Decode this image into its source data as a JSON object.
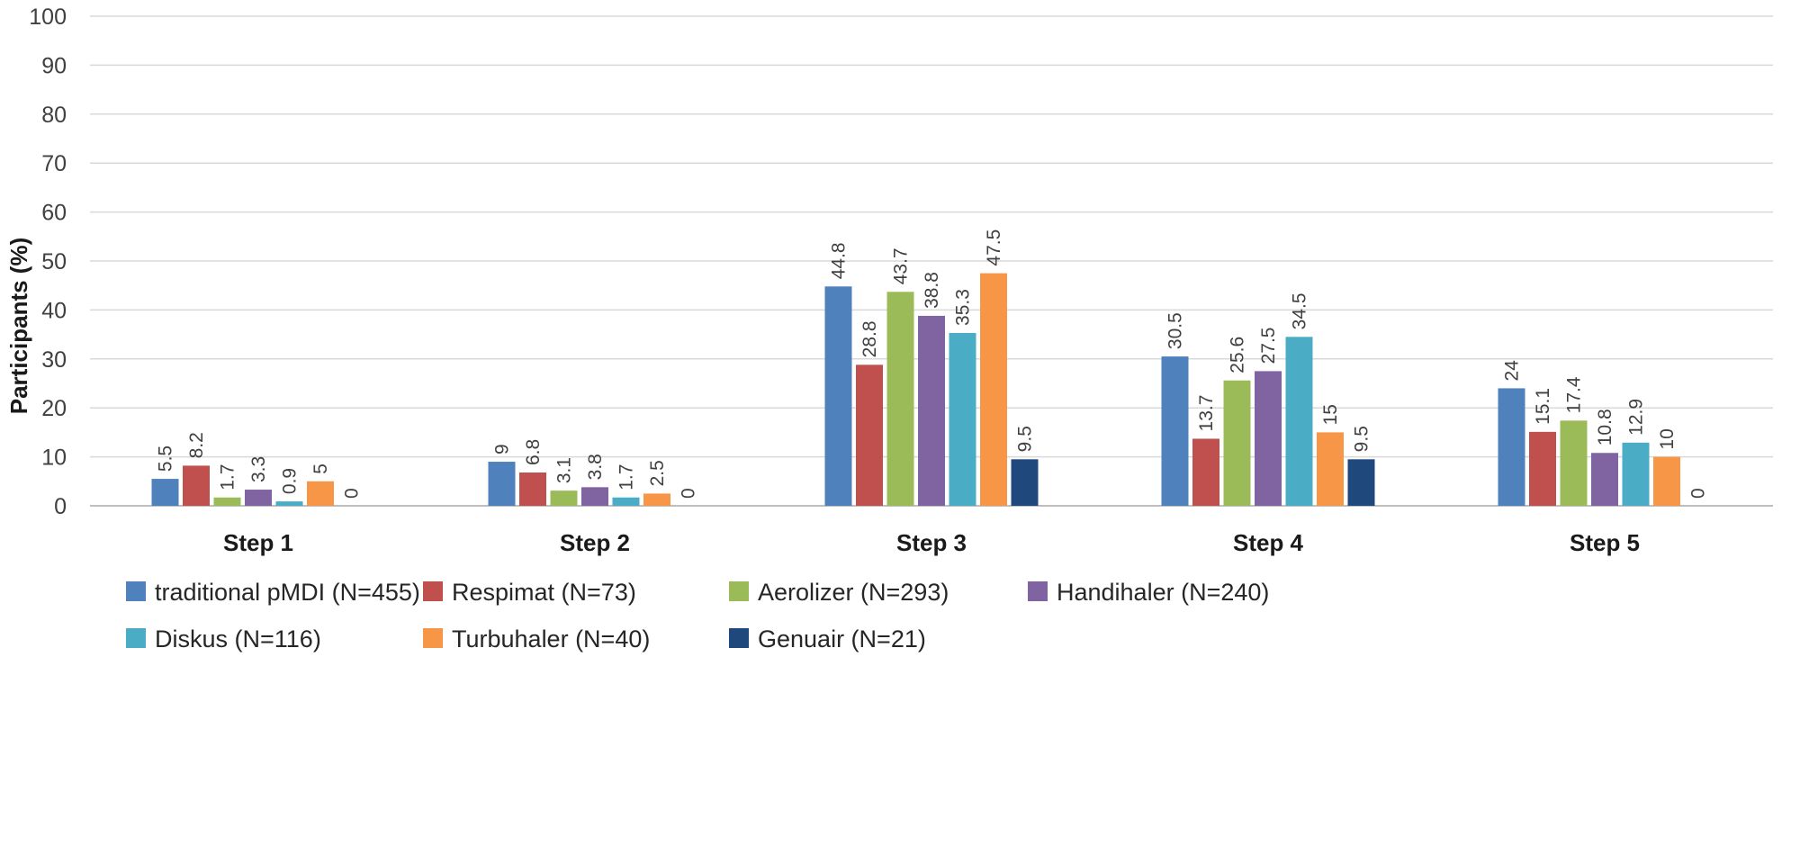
{
  "chart_data": {
    "type": "bar",
    "title": "",
    "xlabel": "",
    "ylabel": "Participants (%)",
    "ylim": [
      0,
      100
    ],
    "yticks": [
      0,
      10,
      20,
      30,
      40,
      50,
      60,
      70,
      80,
      90,
      100
    ],
    "grid": true,
    "legend_position": "bottom",
    "categories": [
      "Step 1",
      "Step 2",
      "Step 3",
      "Step 4",
      "Step 5"
    ],
    "series": [
      {
        "name": "traditional pMDI (N=455)",
        "color": "#4f81bd",
        "values": [
          5.5,
          9,
          44.8,
          30.5,
          24
        ]
      },
      {
        "name": "Respimat (N=73)",
        "color": "#c0504d",
        "values": [
          8.2,
          6.8,
          28.8,
          13.7,
          15.1
        ]
      },
      {
        "name": "Aerolizer (N=293)",
        "color": "#9bbb59",
        "values": [
          1.7,
          3.1,
          43.7,
          25.6,
          17.4
        ]
      },
      {
        "name": "Handihaler (N=240)",
        "color": "#8064a2",
        "values": [
          3.3,
          3.8,
          38.8,
          27.5,
          10.8
        ]
      },
      {
        "name": "Diskus (N=116)",
        "color": "#4bacc6",
        "values": [
          0.9,
          1.7,
          35.3,
          34.5,
          12.9
        ]
      },
      {
        "name": "Turbuhaler (N=40)",
        "color": "#f79646",
        "values": [
          5,
          2.5,
          47.5,
          15,
          10
        ]
      },
      {
        "name": "Genuair (N=21)",
        "color": "#1f497d",
        "values": [
          0,
          0,
          9.5,
          9.5,
          0
        ]
      }
    ]
  }
}
